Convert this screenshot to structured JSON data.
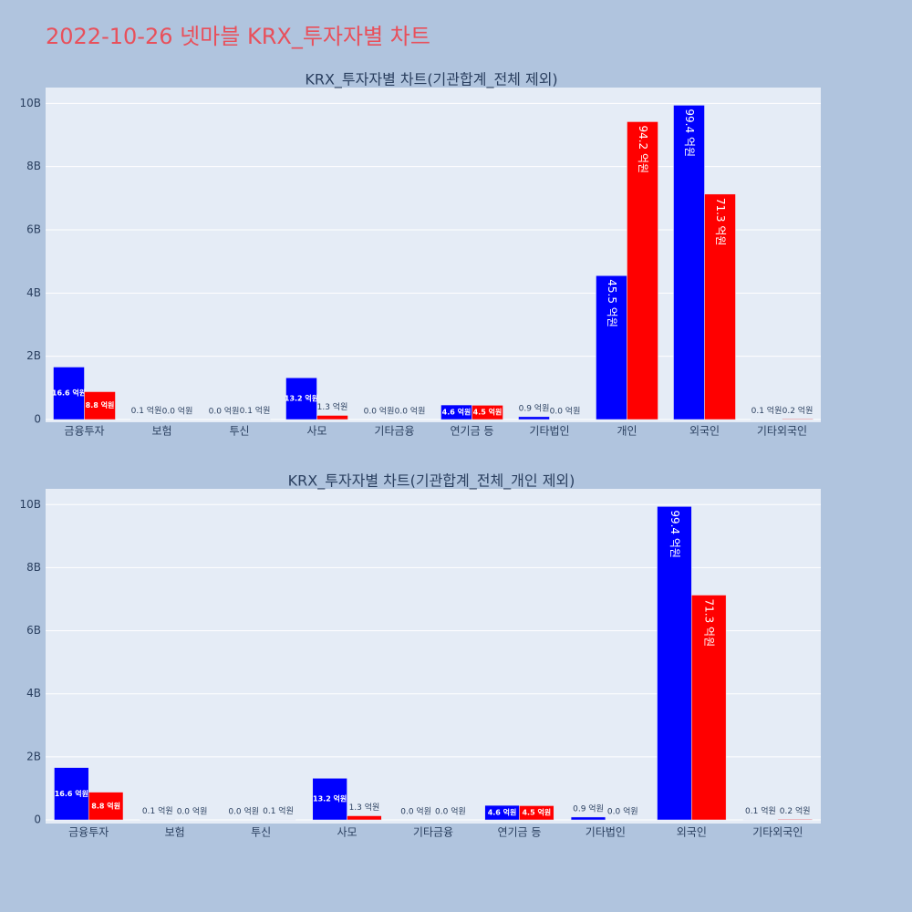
{
  "title": "2022-10-26 넷마블 KRX_투자자별 차트",
  "chart_data": [
    {
      "type": "bar",
      "title": "KRX_투자자별 차트(기관합계_전체 제외)",
      "categories": [
        "금융투자",
        "보험",
        "투신",
        "사모",
        "기타금융",
        "연기금 등",
        "기타법인",
        "개인",
        "외국인",
        "기타외국인"
      ],
      "series": [
        {
          "color": "#0000ff",
          "values": [
            1.66,
            0.01,
            0.0,
            1.32,
            0.0,
            0.46,
            0.09,
            4.55,
            9.94,
            0.01
          ],
          "value_labels": [
            "16.6 억원",
            "0.1 억원",
            "0.0 억원",
            "13.2 억원",
            "0.0 억원",
            "4.6 억원",
            "0.9 억원",
            "45.5 억원",
            "99.4 억원",
            "0.1 억원"
          ]
        },
        {
          "color": "#ff0000",
          "values": [
            0.88,
            0.0,
            0.01,
            0.13,
            0.0,
            0.45,
            0.0,
            9.42,
            7.13,
            0.02
          ],
          "value_labels": [
            "8.8 억원",
            "0.0 억원",
            "0.1 억원",
            "1.3 억원",
            "0.0 억원",
            "4.5 억원",
            "0.0 억원",
            "94.2 억원",
            "71.3 억원",
            "0.2 억원"
          ]
        }
      ],
      "ylim": [
        0,
        10.5
      ],
      "yticks": [
        0,
        {
          "value": 2,
          "label": "2B"
        },
        {
          "value": 4,
          "label": "4B"
        },
        {
          "value": 6,
          "label": "6B"
        },
        {
          "value": 8,
          "label": "8B"
        },
        {
          "value": 10,
          "label": "10B"
        }
      ],
      "grid": true
    },
    {
      "type": "bar",
      "title": "KRX_투자자별 차트(기관합계_전체_개인 제외)",
      "categories": [
        "금융투자",
        "보험",
        "투신",
        "사모",
        "기타금융",
        "연기금 등",
        "기타법인",
        "외국인",
        "기타외국인"
      ],
      "series": [
        {
          "color": "#0000ff",
          "values": [
            1.66,
            0.01,
            0.0,
            1.32,
            0.0,
            0.46,
            0.09,
            9.94,
            0.01
          ],
          "value_labels": [
            "16.6 억원",
            "0.1 억원",
            "0.0 억원",
            "13.2 억원",
            "0.0 억원",
            "4.6 억원",
            "0.9 억원",
            "99.4 억원",
            "0.1 억원"
          ]
        },
        {
          "color": "#ff0000",
          "values": [
            0.88,
            0.0,
            0.01,
            0.13,
            0.0,
            0.45,
            0.0,
            7.13,
            0.02
          ],
          "value_labels": [
            "8.8 억원",
            "0.0 억원",
            "0.1 억원",
            "1.3 억원",
            "0.0 억원",
            "4.5 억원",
            "0.0 억원",
            "71.3 억원",
            "0.2 억원"
          ]
        }
      ],
      "ylim": [
        0,
        10.5
      ],
      "yticks": [
        0,
        {
          "value": 2,
          "label": "2B"
        },
        {
          "value": 4,
          "label": "4B"
        },
        {
          "value": 6,
          "label": "6B"
        },
        {
          "value": 8,
          "label": "8B"
        },
        {
          "value": 10,
          "label": "10B"
        }
      ],
      "grid": true
    }
  ]
}
